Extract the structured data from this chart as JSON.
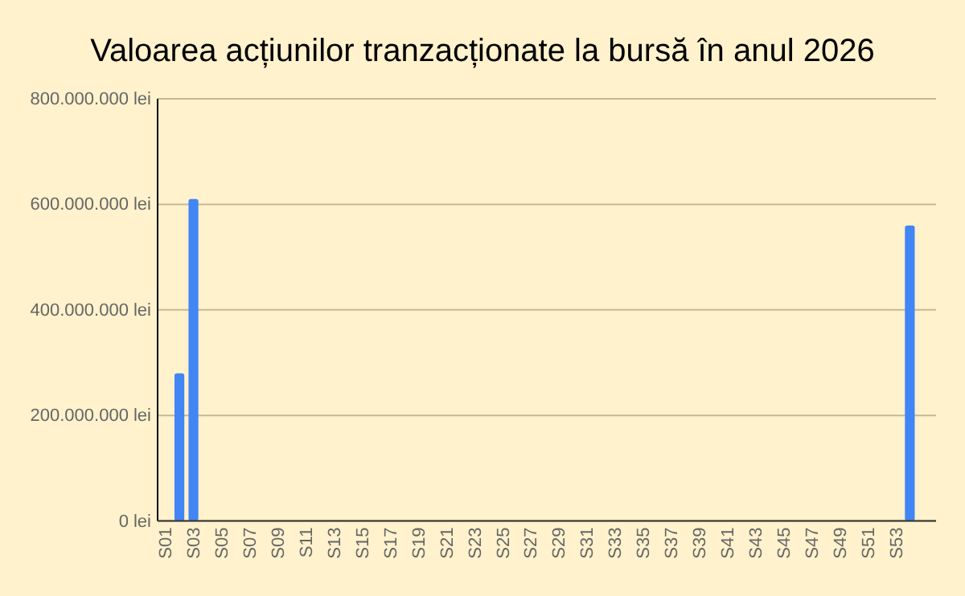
{
  "chart_data": {
    "type": "bar",
    "title": "Valoarea acțiunilor tranzacționate la bursă în anul 2026",
    "categories": [
      "S01",
      null,
      "S03",
      null,
      "S05",
      null,
      "S07",
      null,
      "S09",
      null,
      "S11",
      null,
      "S13",
      null,
      "S15",
      null,
      "S17",
      null,
      "S19",
      null,
      "S21",
      null,
      "S23",
      null,
      "S25",
      null,
      "S27",
      null,
      "S29",
      null,
      "S31",
      null,
      "S33",
      null,
      "S35",
      null,
      "S37",
      null,
      "S39",
      null,
      "S41",
      null,
      "S43",
      null,
      "S45",
      null,
      "S47",
      null,
      "S49",
      null,
      "S51",
      null,
      "S53",
      null
    ],
    "values": [
      0,
      280000000,
      610000000,
      0,
      0,
      0,
      0,
      0,
      0,
      0,
      0,
      0,
      0,
      0,
      0,
      0,
      0,
      0,
      0,
      0,
      0,
      0,
      0,
      0,
      0,
      0,
      0,
      0,
      0,
      0,
      0,
      0,
      0,
      0,
      0,
      0,
      0,
      0,
      0,
      0,
      0,
      0,
      0,
      0,
      0,
      0,
      0,
      0,
      0,
      0,
      0,
      0,
      0,
      560000000
    ],
    "color": "#4285f4",
    "ylim": [
      0,
      800000000
    ],
    "yticks": [
      {
        "value": 0,
        "label": "0 lei"
      },
      {
        "value": 200000000,
        "label": "200.000.000 lei"
      },
      {
        "value": 400000000,
        "label": "400.000.000 lei"
      },
      {
        "value": 600000000,
        "label": "600.000.000 lei"
      },
      {
        "value": 800000000,
        "label": "800.000.000 lei"
      }
    ],
    "grid": true
  }
}
